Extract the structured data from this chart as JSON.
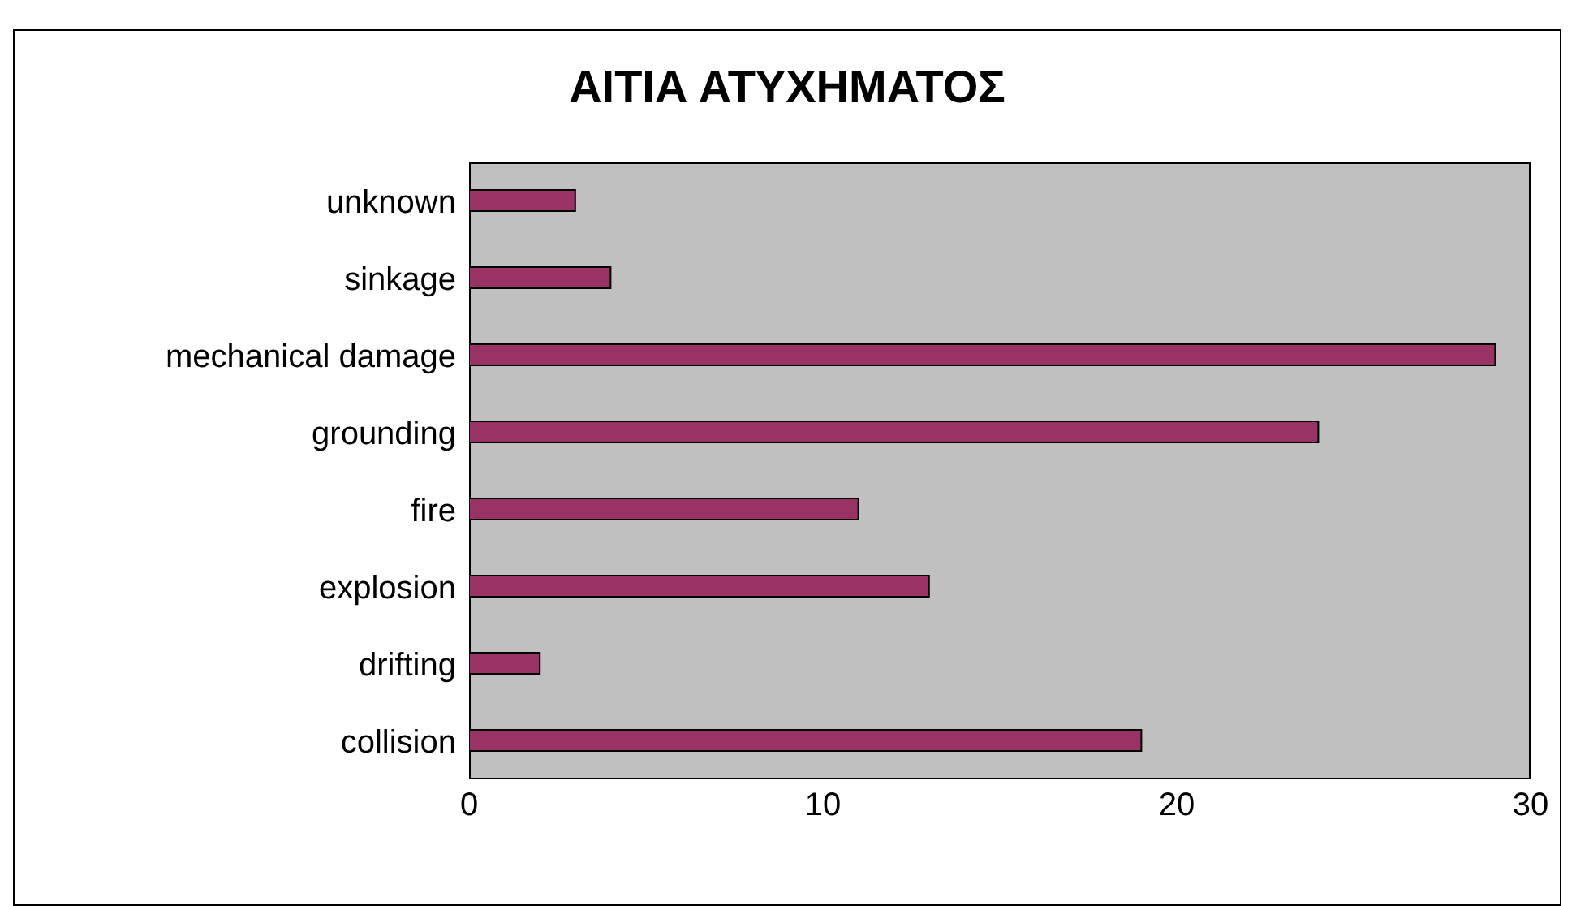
{
  "chart_data": {
    "type": "bar",
    "orientation": "horizontal",
    "title": "ΑΙΤΙΑ ΑΤΥΧΗΜΑΤΟΣ",
    "categories": [
      "unknown",
      "sinkage",
      "mechanical damage",
      "grounding",
      "fire",
      "explosion",
      "drifting",
      "collision"
    ],
    "values": [
      3,
      4,
      29,
      24,
      11,
      13,
      2,
      19
    ],
    "color": "#993366",
    "xlim": [
      0,
      30
    ],
    "xticks": [
      0,
      10,
      20,
      30
    ]
  }
}
